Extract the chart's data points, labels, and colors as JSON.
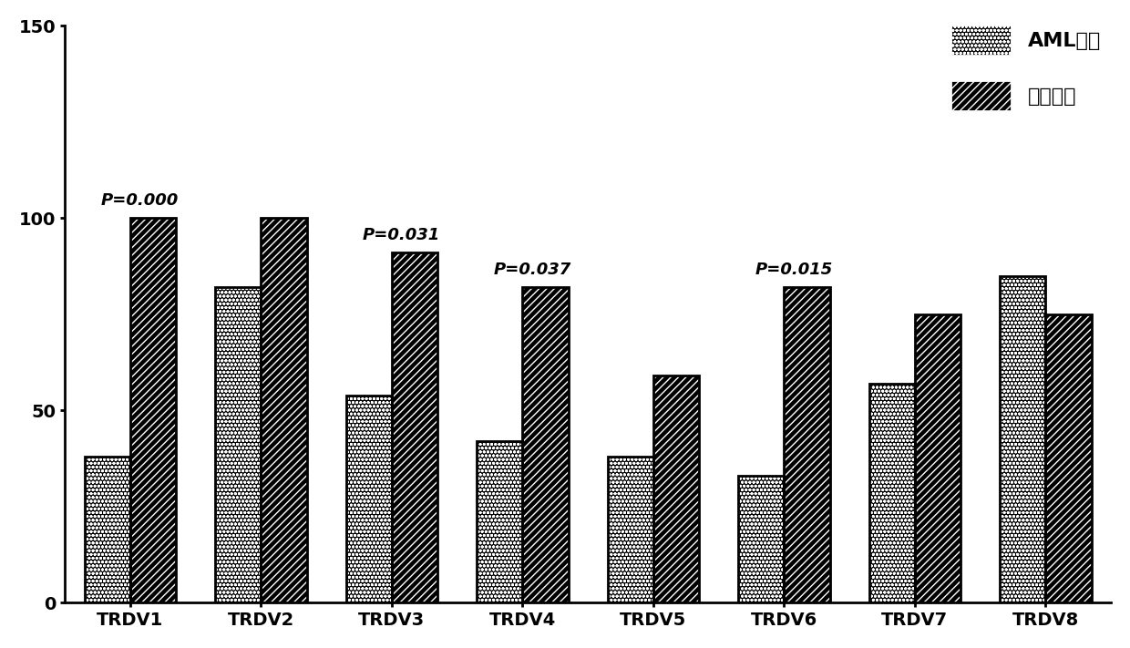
{
  "categories": [
    "TRDV1",
    "TRDV2",
    "TRDV3",
    "TRDV4",
    "TRDV5",
    "TRDV6",
    "TRDV7",
    "TRDV8"
  ],
  "aml_values": [
    38,
    82,
    54,
    42,
    38,
    33,
    57,
    85
  ],
  "healthy_values": [
    100,
    100,
    91,
    82,
    59,
    82,
    75,
    75
  ],
  "p_values_list": [
    {
      "cat": "TRDV1",
      "idx": 0,
      "text": "P=0.000"
    },
    {
      "cat": "TRDV3",
      "idx": 2,
      "text": "P=0.031"
    },
    {
      "cat": "TRDV4",
      "idx": 3,
      "text": "P=0.037"
    },
    {
      "cat": "TRDV6",
      "idx": 5,
      "text": "P=0.015"
    }
  ],
  "ylim": [
    0,
    150
  ],
  "yticks": [
    0,
    50,
    100,
    150
  ],
  "legend_labels": [
    "AML患者",
    "健康对照"
  ],
  "bar_width": 0.35,
  "background_color": "#ffffff",
  "font_size_tick": 14,
  "font_size_legend": 16,
  "font_size_pvalue": 13
}
